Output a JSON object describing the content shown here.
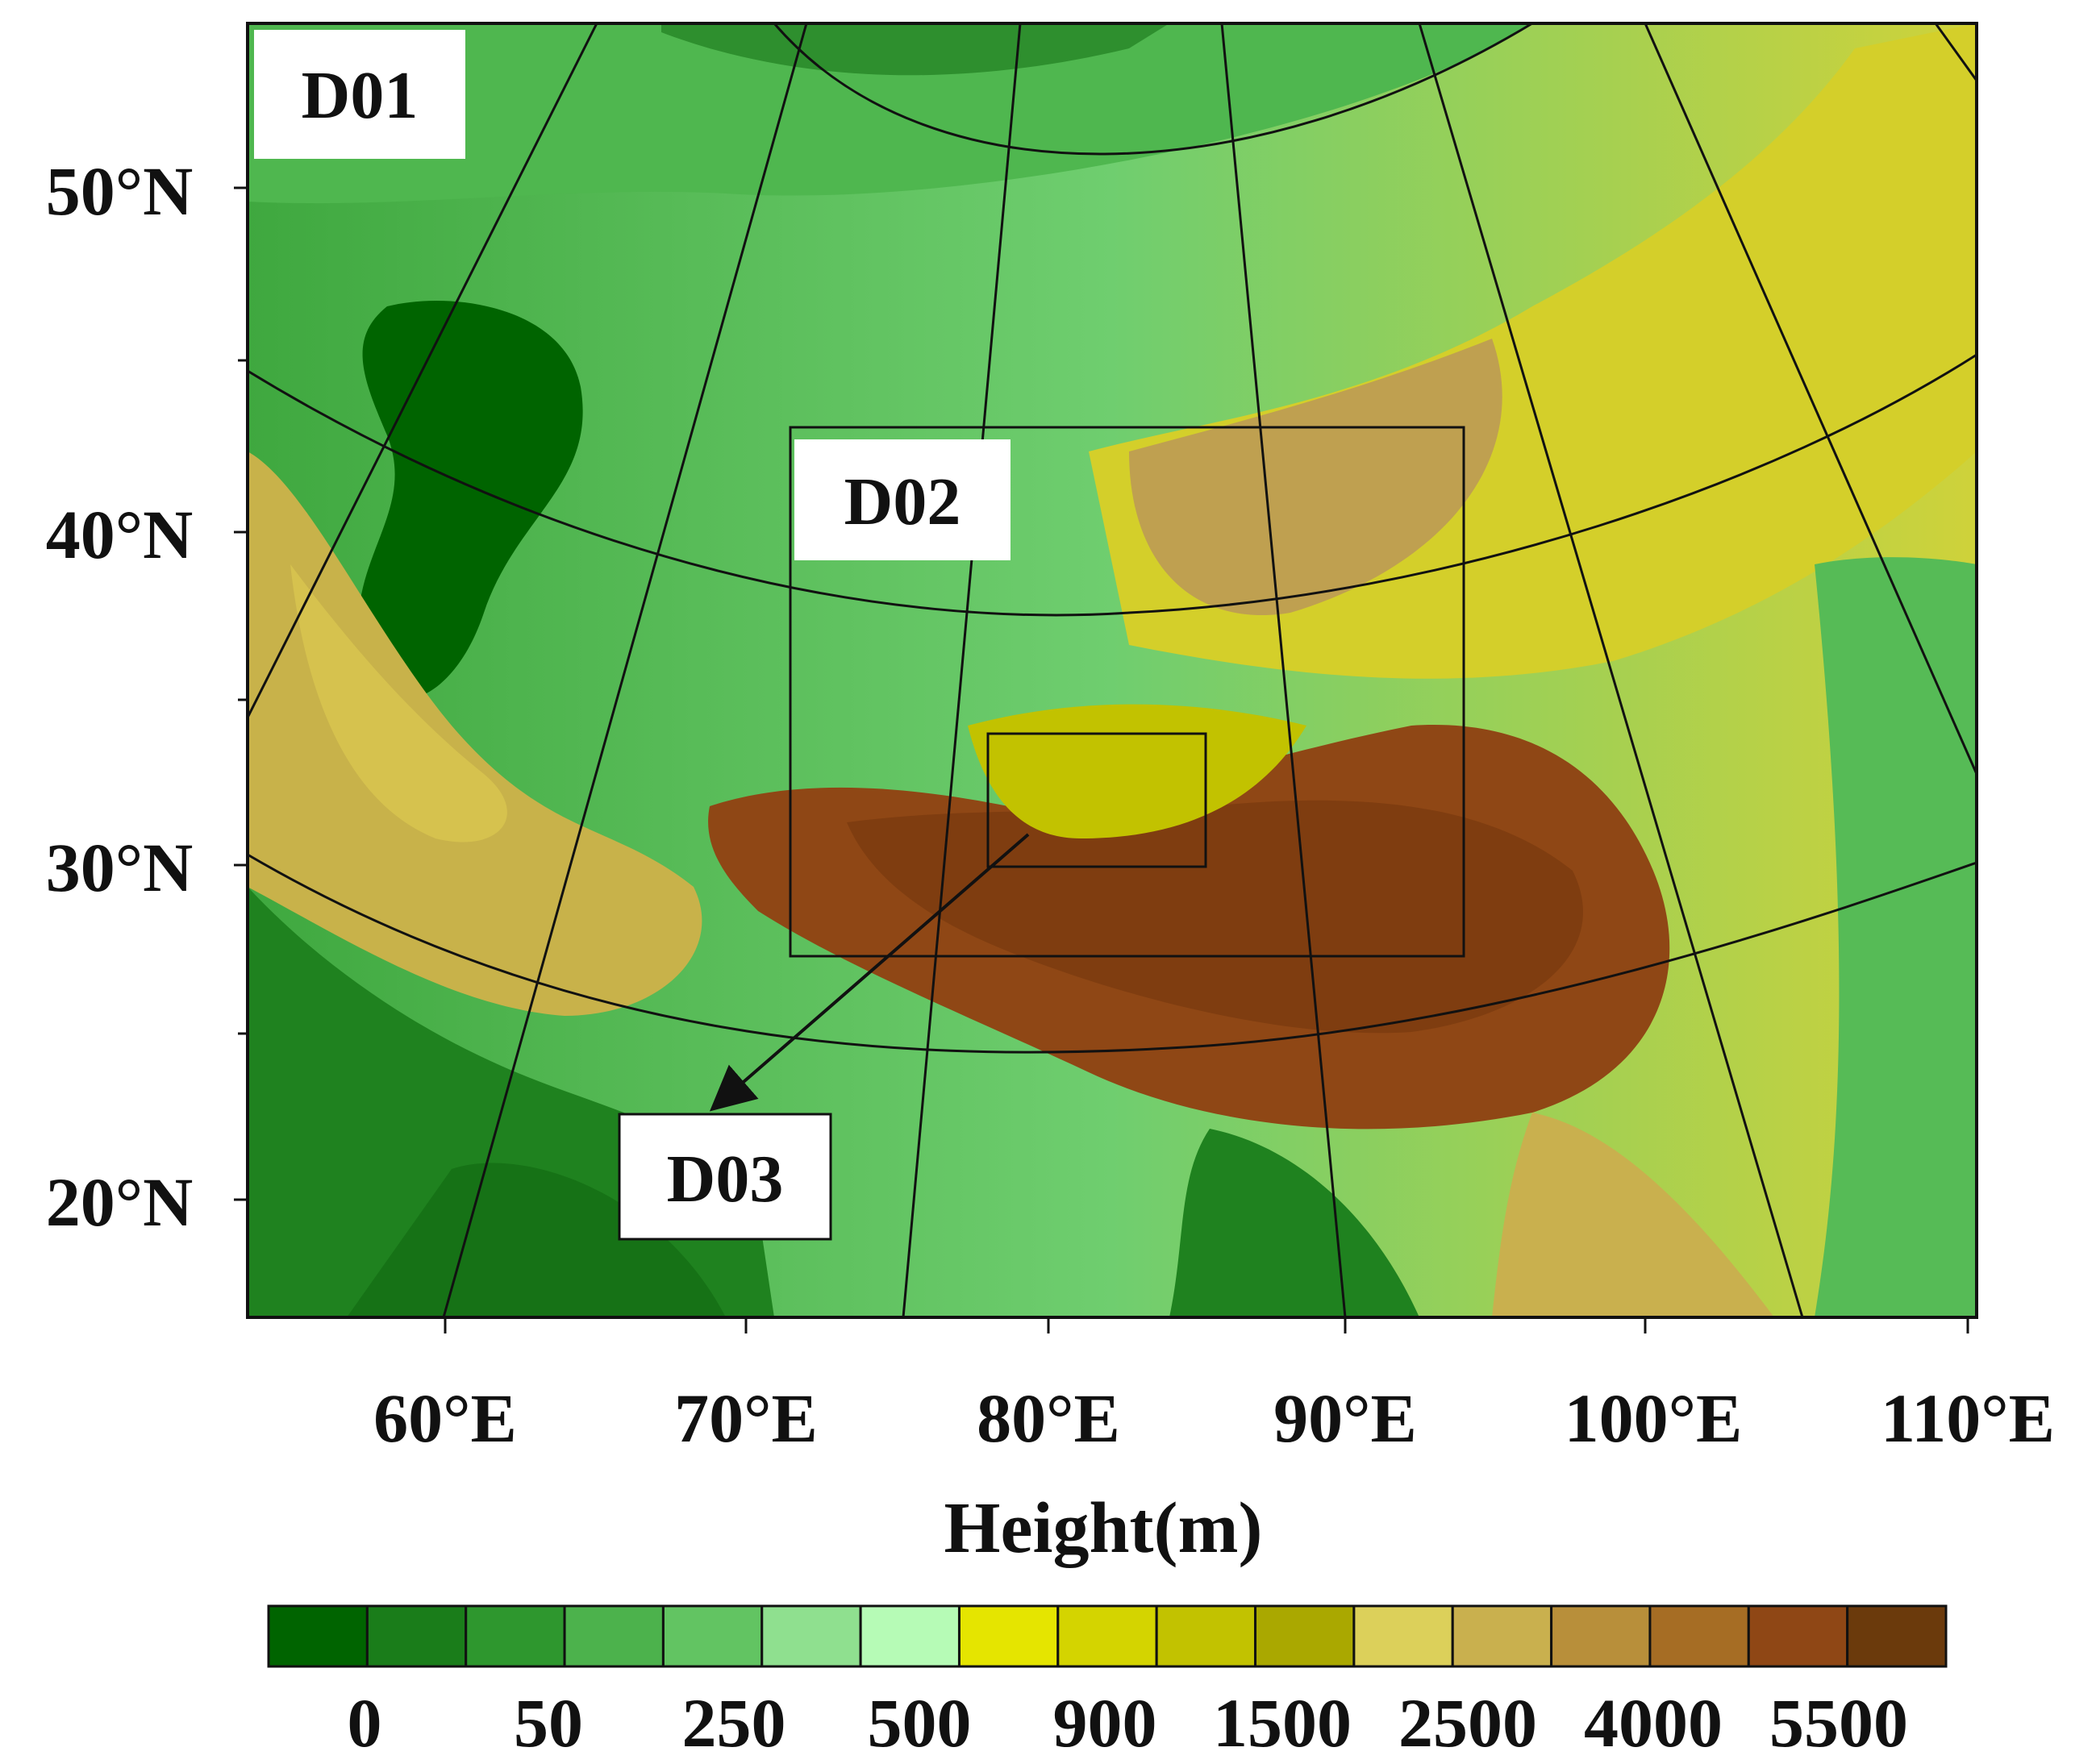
{
  "map": {
    "domains": [
      {
        "id": "D01",
        "label": "D01"
      },
      {
        "id": "D02",
        "label": "D02"
      },
      {
        "id": "D03",
        "label": "D03"
      }
    ],
    "lat_labels": [
      "50°N",
      "40°N",
      "30°N",
      "20°N"
    ],
    "lon_labels": [
      "60°E",
      "70°E",
      "80°E",
      "90°E",
      "100°E",
      "110°E"
    ]
  },
  "colorbar": {
    "title": "Height(m)",
    "colors": [
      "#006400",
      "#1a7d1a",
      "#2e972e",
      "#4cb24c",
      "#62c462",
      "#8fe08f",
      "#b6fbb6",
      "#e5e500",
      "#d4d400",
      "#c2c200",
      "#aaa800",
      "#dcd05a",
      "#c9b04e",
      "#b88f3a",
      "#a66d24",
      "#8f4715",
      "#6b3a0c"
    ],
    "tick_labels": [
      "0",
      "50",
      "250",
      "500",
      "900",
      "1500",
      "2500",
      "4000",
      "5500"
    ]
  }
}
